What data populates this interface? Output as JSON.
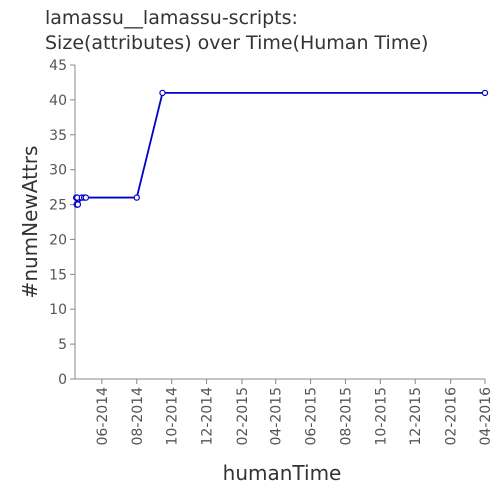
{
  "chart_data": {
    "type": "line",
    "title_lines": [
      "lamassu__lamassu-scripts:",
      "Size(attributes) over Time(Human Time)"
    ],
    "xlabel": "humanTime",
    "ylabel": "#numNewAttrs",
    "ylim": [
      0,
      45
    ],
    "yticks": [
      0,
      5,
      10,
      15,
      20,
      25,
      30,
      35,
      40,
      45
    ],
    "xlim": [
      "2014-04-15",
      "2016-04-01"
    ],
    "xticks": [
      "06-2014",
      "08-2014",
      "10-2014",
      "12-2014",
      "02-2015",
      "04-2015",
      "06-2015",
      "08-2015",
      "10-2015",
      "12-2015",
      "02-2016",
      "04-2016"
    ],
    "line_color": "#0000cc",
    "grid": false,
    "series": [
      {
        "x": [
          "2014-04-17",
          "2014-04-18",
          "2014-04-19",
          "2014-04-20",
          "2014-04-27",
          "2014-05-01",
          "2014-05-04",
          "2014-08-01",
          "2014-09-15",
          "2016-04-01"
        ],
        "y": [
          26,
          25,
          26,
          25,
          26,
          26,
          26,
          26,
          41,
          41
        ]
      }
    ]
  }
}
